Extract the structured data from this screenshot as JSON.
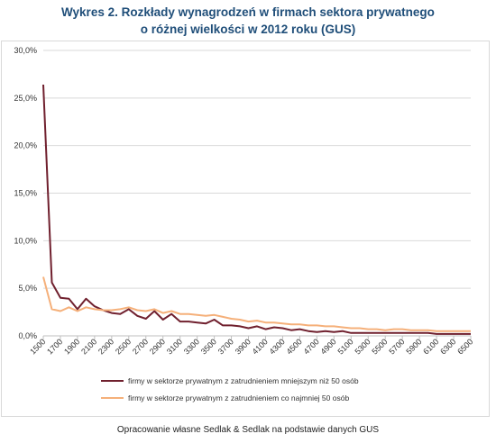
{
  "title_line1": "Wykres 2. Rozkłady wynagrodzeń w firmach sektora prywatnego",
  "title_line2": "o różnej wielkości w 2012 roku (GUS)",
  "footer": "Opracowanie własne Sedlak & Sedlak na podstawie danych GUS",
  "chart_data": {
    "type": "line",
    "x": [
      1500,
      1600,
      1700,
      1800,
      1900,
      2000,
      2100,
      2200,
      2300,
      2400,
      2500,
      2600,
      2700,
      2800,
      2900,
      3000,
      3100,
      3200,
      3300,
      3400,
      3500,
      3600,
      3700,
      3800,
      3900,
      4000,
      4100,
      4200,
      4300,
      4400,
      4500,
      4600,
      4700,
      4800,
      4900,
      5000,
      5100,
      5200,
      5300,
      5400,
      5500,
      5600,
      5700,
      5800,
      5900,
      6000,
      6100,
      6200,
      6300,
      6400,
      6500
    ],
    "x_tick_labels": [
      "1500",
      "1700",
      "1900",
      "2100",
      "2300",
      "2500",
      "2700",
      "2900",
      "3100",
      "3300",
      "3500",
      "3700",
      "3900",
      "4100",
      "4300",
      "4500",
      "4700",
      "4900",
      "5100",
      "5300",
      "5500",
      "5700",
      "5900",
      "6100",
      "6300",
      "6500"
    ],
    "y_ticks": [
      "0,0%",
      "5,0%",
      "10,0%",
      "15,0%",
      "20,0%",
      "25,0%",
      "30,0%"
    ],
    "ylim": [
      0,
      30
    ],
    "grid": true,
    "legend_position": "bottom",
    "series": [
      {
        "name": "firmy w sektorze prywatnym z zatrudnieniem mniejszym niż 50 osób",
        "color": "#70202e",
        "values": [
          26.4,
          5.6,
          4.0,
          3.9,
          2.8,
          3.9,
          3.1,
          2.7,
          2.4,
          2.3,
          2.8,
          2.1,
          1.8,
          2.6,
          1.7,
          2.3,
          1.5,
          1.5,
          1.4,
          1.3,
          1.7,
          1.1,
          1.1,
          1.0,
          0.8,
          1.0,
          0.7,
          0.9,
          0.8,
          0.6,
          0.7,
          0.5,
          0.4,
          0.5,
          0.4,
          0.5,
          0.3,
          0.3,
          0.3,
          0.3,
          0.3,
          0.3,
          0.3,
          0.3,
          0.3,
          0.3,
          0.2,
          0.2,
          0.2,
          0.2,
          0.2
        ]
      },
      {
        "name": "firmy w sektorze prywatnym z zatrudnieniem co najmniej 50 osób",
        "color": "#f5b07a",
        "values": [
          6.2,
          2.8,
          2.6,
          3.0,
          2.6,
          3.0,
          2.8,
          2.7,
          2.7,
          2.8,
          3.0,
          2.7,
          2.6,
          2.8,
          2.4,
          2.6,
          2.3,
          2.3,
          2.2,
          2.1,
          2.2,
          2.0,
          1.8,
          1.7,
          1.5,
          1.6,
          1.4,
          1.4,
          1.3,
          1.2,
          1.2,
          1.1,
          1.1,
          1.0,
          1.0,
          0.9,
          0.8,
          0.8,
          0.7,
          0.7,
          0.6,
          0.7,
          0.7,
          0.6,
          0.6,
          0.6,
          0.5,
          0.5,
          0.5,
          0.5,
          0.5
        ]
      }
    ]
  }
}
